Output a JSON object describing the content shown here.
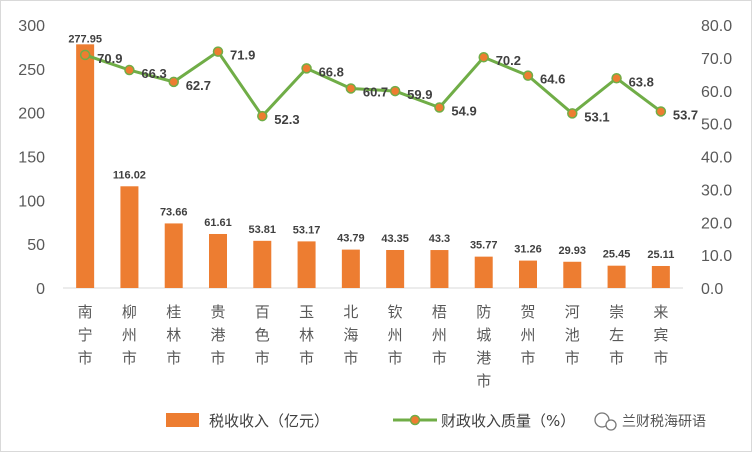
{
  "chart_data": {
    "type": "bar+line",
    "categories": [
      [
        "南",
        "宁",
        "市"
      ],
      [
        "柳",
        "州",
        "市"
      ],
      [
        "桂",
        "林",
        "市"
      ],
      [
        "贵",
        "港",
        "市"
      ],
      [
        "百",
        "色",
        "市"
      ],
      [
        "玉",
        "林",
        "市"
      ],
      [
        "北",
        "海",
        "市"
      ],
      [
        "钦",
        "州",
        "市"
      ],
      [
        "梧",
        "州",
        "市"
      ],
      [
        "防",
        "城",
        "港",
        "市"
      ],
      [
        "贺",
        "州",
        "市"
      ],
      [
        "河",
        "池",
        "市"
      ],
      [
        "崇",
        "左",
        "市"
      ],
      [
        "来",
        "宾",
        "市"
      ]
    ],
    "series": [
      {
        "name": "税收收入（亿元）",
        "type": "bar",
        "axis": "left",
        "color": "#ed7d31",
        "values": [
          277.95,
          116.02,
          73.66,
          61.61,
          53.81,
          53.17,
          43.79,
          43.35,
          43.3,
          35.77,
          31.26,
          29.93,
          25.45,
          25.11
        ],
        "labels": [
          "277.95",
          "116.02",
          "73.66",
          "61.61",
          "53.81",
          "53.17",
          "43.79",
          "43.35",
          "43.3",
          "35.77",
          "31.26",
          "29.93",
          "25.45",
          "25.11"
        ]
      },
      {
        "name": "财政收入质量（%）",
        "type": "line",
        "axis": "right",
        "color": "#70ad47",
        "marker_color": "#ed7d31",
        "values": [
          70.9,
          66.3,
          62.7,
          71.9,
          52.3,
          66.8,
          60.7,
          59.9,
          54.9,
          70.2,
          64.6,
          53.1,
          63.8,
          53.7
        ],
        "labels": [
          "70.9",
          "66.3",
          "62.7",
          "71.9",
          "52.3",
          "66.8",
          "60.7",
          "59.9",
          "54.9",
          "70.2",
          "64.6",
          "53.1",
          "63.8",
          "53.7"
        ]
      }
    ],
    "left_axis": {
      "min": 0,
      "max": 300,
      "ticks": [
        "0",
        "50",
        "100",
        "150",
        "200",
        "250",
        "300"
      ]
    },
    "right_axis": {
      "min": 0,
      "max": 80,
      "ticks": [
        "0.0",
        "10.0",
        "20.0",
        "30.0",
        "40.0",
        "50.0",
        "60.0",
        "70.0",
        "80.0"
      ]
    },
    "legend_position": "bottom"
  },
  "watermark": "兰财税海研语"
}
